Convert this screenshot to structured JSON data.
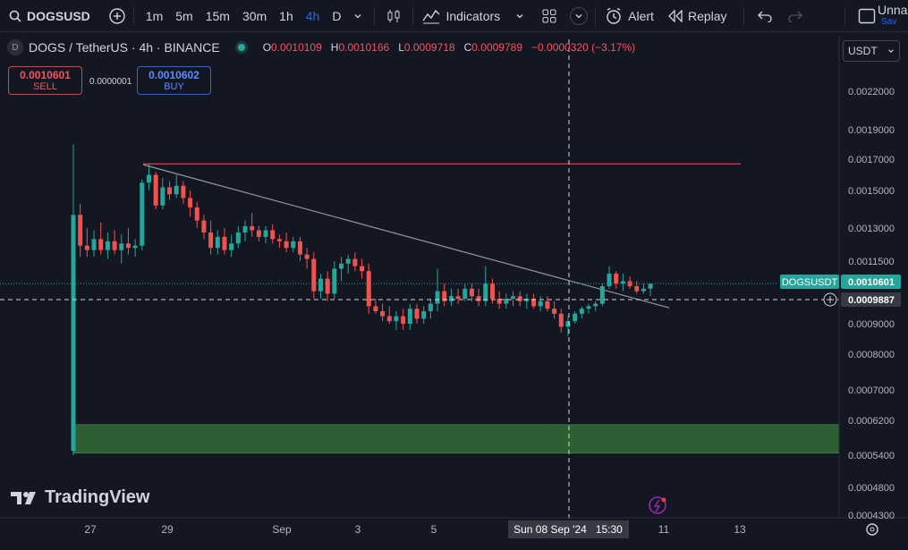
{
  "toolbar": {
    "symbol": "DOGSUSD",
    "intervals": [
      "1m",
      "5m",
      "15m",
      "30m",
      "1h",
      "4h",
      "D"
    ],
    "active_interval": "4h",
    "indicators_label": "Indicators",
    "alert_label": "Alert",
    "replay_label": "Replay",
    "layout_name": "Unna",
    "save_label": "Sav"
  },
  "chart_header": {
    "title": "DOGS / TetherUS · 4h · BINANCE",
    "o_label": "O",
    "o": "0.0010109",
    "h_label": "H",
    "h": "0.0010166",
    "l_label": "L",
    "l": "0.0009718",
    "c_label": "C",
    "c": "0.0009789",
    "change": "−0.0000320 (−3.17%)"
  },
  "trade": {
    "sell_price": "0.0010601",
    "sell_label": "SELL",
    "spread": "0.0000001",
    "buy_price": "0.0010602",
    "buy_label": "BUY"
  },
  "currency": "USDT",
  "colors": {
    "background": "#131722",
    "up": "#26a69a",
    "down": "#ef5350",
    "resistance": "#f23645",
    "zone": "#2e5e34",
    "trendline": "#9598a1"
  },
  "chart_data": {
    "type": "candlestick",
    "symbol": "DOGSUSDT",
    "y_ticks": [
      "0.0022000",
      "0.0019000",
      "0.0017000",
      "0.0015000",
      "0.0013000",
      "0.0011500",
      "0.0009000",
      "0.0008000",
      "0.0007000",
      "0.0006200",
      "0.0005400",
      "0.0004800",
      "0.0004300"
    ],
    "x_ticks": [
      "27",
      "29",
      "Sep",
      "3",
      "5",
      "11",
      "13"
    ],
    "last_price_label": "DOGSUSDT",
    "last_price": "0.0010601",
    "crosshair_price": "0.0009887",
    "crosshair_time": "Sun 08 Sep '24   15:30",
    "resistance_level": 0.00167,
    "support_zone": [
      0.000545,
      0.00061
    ],
    "trendline": [
      [
        0.001665,
        0
      ],
      [
        0.000985,
        1
      ]
    ],
    "candles": [
      {
        "o": 0.00055,
        "h": 0.0018,
        "l": 0.00054,
        "c": 0.00137
      },
      {
        "o": 0.00137,
        "h": 0.00143,
        "l": 0.00117,
        "c": 0.00122
      },
      {
        "o": 0.00122,
        "h": 0.0013,
        "l": 0.00117,
        "c": 0.0012
      },
      {
        "o": 0.0012,
        "h": 0.00129,
        "l": 0.00117,
        "c": 0.00125
      },
      {
        "o": 0.00125,
        "h": 0.00133,
        "l": 0.00118,
        "c": 0.0012
      },
      {
        "o": 0.0012,
        "h": 0.00128,
        "l": 0.00116,
        "c": 0.00124
      },
      {
        "o": 0.00124,
        "h": 0.00129,
        "l": 0.00118,
        "c": 0.0012
      },
      {
        "o": 0.0012,
        "h": 0.00127,
        "l": 0.00114,
        "c": 0.00123
      },
      {
        "o": 0.00123,
        "h": 0.0013,
        "l": 0.00118,
        "c": 0.00121
      },
      {
        "o": 0.00121,
        "h": 0.00125,
        "l": 0.00117,
        "c": 0.00122
      },
      {
        "o": 0.00122,
        "h": 0.00157,
        "l": 0.0012,
        "c": 0.00155
      },
      {
        "o": 0.00155,
        "h": 0.00167,
        "l": 0.0015,
        "c": 0.0016
      },
      {
        "o": 0.0016,
        "h": 0.00162,
        "l": 0.0014,
        "c": 0.00142
      },
      {
        "o": 0.00142,
        "h": 0.00158,
        "l": 0.0014,
        "c": 0.00152
      },
      {
        "o": 0.00152,
        "h": 0.00156,
        "l": 0.00145,
        "c": 0.00148
      },
      {
        "o": 0.00148,
        "h": 0.0016,
        "l": 0.00146,
        "c": 0.00153
      },
      {
        "o": 0.00153,
        "h": 0.00156,
        "l": 0.00143,
        "c": 0.00146
      },
      {
        "o": 0.00146,
        "h": 0.0015,
        "l": 0.00136,
        "c": 0.00141
      },
      {
        "o": 0.00141,
        "h": 0.00144,
        "l": 0.0013,
        "c": 0.00134
      },
      {
        "o": 0.00134,
        "h": 0.00137,
        "l": 0.00125,
        "c": 0.00128
      },
      {
        "o": 0.00128,
        "h": 0.00134,
        "l": 0.00118,
        "c": 0.00121
      },
      {
        "o": 0.00121,
        "h": 0.00129,
        "l": 0.00118,
        "c": 0.00126
      },
      {
        "o": 0.00126,
        "h": 0.0013,
        "l": 0.00118,
        "c": 0.0012
      },
      {
        "o": 0.0012,
        "h": 0.00127,
        "l": 0.00117,
        "c": 0.00123
      },
      {
        "o": 0.00123,
        "h": 0.00131,
        "l": 0.00121,
        "c": 0.00128
      },
      {
        "o": 0.00128,
        "h": 0.00134,
        "l": 0.00124,
        "c": 0.00131
      },
      {
        "o": 0.00131,
        "h": 0.00138,
        "l": 0.00126,
        "c": 0.00129
      },
      {
        "o": 0.00129,
        "h": 0.00131,
        "l": 0.00124,
        "c": 0.00126
      },
      {
        "o": 0.00126,
        "h": 0.00131,
        "l": 0.00123,
        "c": 0.00129
      },
      {
        "o": 0.00129,
        "h": 0.00132,
        "l": 0.00123,
        "c": 0.00125
      },
      {
        "o": 0.00125,
        "h": 0.00127,
        "l": 0.00121,
        "c": 0.00124
      },
      {
        "o": 0.00124,
        "h": 0.00128,
        "l": 0.00119,
        "c": 0.00121
      },
      {
        "o": 0.00121,
        "h": 0.00126,
        "l": 0.00119,
        "c": 0.00124
      },
      {
        "o": 0.00124,
        "h": 0.00126,
        "l": 0.00115,
        "c": 0.00118
      },
      {
        "o": 0.00118,
        "h": 0.00121,
        "l": 0.00112,
        "c": 0.00116
      },
      {
        "o": 0.00116,
        "h": 0.00119,
        "l": 0.001,
        "c": 0.00103
      },
      {
        "o": 0.00103,
        "h": 0.0011,
        "l": 0.001,
        "c": 0.00108
      },
      {
        "o": 0.00108,
        "h": 0.00111,
        "l": 0.00099,
        "c": 0.00102
      },
      {
        "o": 0.00102,
        "h": 0.00115,
        "l": 0.001,
        "c": 0.00112
      },
      {
        "o": 0.00112,
        "h": 0.00117,
        "l": 0.00107,
        "c": 0.00114
      },
      {
        "o": 0.00114,
        "h": 0.00118,
        "l": 0.0011,
        "c": 0.00116
      },
      {
        "o": 0.00116,
        "h": 0.00119,
        "l": 0.00111,
        "c": 0.00113
      },
      {
        "o": 0.00113,
        "h": 0.00116,
        "l": 0.00108,
        "c": 0.00111
      },
      {
        "o": 0.00111,
        "h": 0.00114,
        "l": 0.00094,
        "c": 0.00097
      },
      {
        "o": 0.00097,
        "h": 0.001,
        "l": 0.00094,
        "c": 0.00095
      },
      {
        "o": 0.00095,
        "h": 0.00098,
        "l": 0.00091,
        "c": 0.00093
      },
      {
        "o": 0.00093,
        "h": 0.00097,
        "l": 0.0009,
        "c": 0.00091
      },
      {
        "o": 0.00091,
        "h": 0.00095,
        "l": 0.00088,
        "c": 0.00093
      },
      {
        "o": 0.00093,
        "h": 0.00096,
        "l": 0.00088,
        "c": 0.0009
      },
      {
        "o": 0.0009,
        "h": 0.00098,
        "l": 0.00088,
        "c": 0.00096
      },
      {
        "o": 0.00096,
        "h": 0.00098,
        "l": 0.0009,
        "c": 0.00092
      },
      {
        "o": 0.00092,
        "h": 0.00097,
        "l": 0.0009,
        "c": 0.00095
      },
      {
        "o": 0.00095,
        "h": 0.001,
        "l": 0.00092,
        "c": 0.00098
      },
      {
        "o": 0.00098,
        "h": 0.00112,
        "l": 0.00095,
        "c": 0.00103
      },
      {
        "o": 0.00103,
        "h": 0.00106,
        "l": 0.00097,
        "c": 0.00099
      },
      {
        "o": 0.00099,
        "h": 0.00104,
        "l": 0.00097,
        "c": 0.00101
      },
      {
        "o": 0.00101,
        "h": 0.00104,
        "l": 0.00098,
        "c": 0.001
      },
      {
        "o": 0.001,
        "h": 0.00106,
        "l": 0.00099,
        "c": 0.00104
      },
      {
        "o": 0.00104,
        "h": 0.00106,
        "l": 0.00099,
        "c": 0.00101
      },
      {
        "o": 0.00101,
        "h": 0.00104,
        "l": 0.00097,
        "c": 0.00099
      },
      {
        "o": 0.00099,
        "h": 0.00113,
        "l": 0.00097,
        "c": 0.00106
      },
      {
        "o": 0.00106,
        "h": 0.00108,
        "l": 0.00098,
        "c": 0.001
      },
      {
        "o": 0.001,
        "h": 0.00103,
        "l": 0.00096,
        "c": 0.00098
      },
      {
        "o": 0.00098,
        "h": 0.00102,
        "l": 0.00096,
        "c": 0.001
      },
      {
        "o": 0.001,
        "h": 0.00103,
        "l": 0.00097,
        "c": 0.00101
      },
      {
        "o": 0.00101,
        "h": 0.00103,
        "l": 0.00097,
        "c": 0.00099
      },
      {
        "o": 0.00099,
        "h": 0.00102,
        "l": 0.00096,
        "c": 0.001
      },
      {
        "o": 0.001,
        "h": 0.00102,
        "l": 0.00096,
        "c": 0.00097
      },
      {
        "o": 0.00097,
        "h": 0.00101,
        "l": 0.00095,
        "c": 0.00099
      },
      {
        "o": 0.00099,
        "h": 0.00101,
        "l": 0.00095,
        "c": 0.00096
      },
      {
        "o": 0.00096,
        "h": 0.00099,
        "l": 0.00092,
        "c": 0.00094
      },
      {
        "o": 0.00094,
        "h": 0.00096,
        "l": 0.00087,
        "c": 0.00089
      },
      {
        "o": 0.00089,
        "h": 0.00093,
        "l": 0.00086,
        "c": 0.00091
      },
      {
        "o": 0.00091,
        "h": 0.00095,
        "l": 0.0009,
        "c": 0.00094
      },
      {
        "o": 0.00094,
        "h": 0.00097,
        "l": 0.00092,
        "c": 0.00096
      },
      {
        "o": 0.00096,
        "h": 0.00098,
        "l": 0.00094,
        "c": 0.00097
      },
      {
        "o": 0.00097,
        "h": 0.00099,
        "l": 0.00095,
        "c": 0.00098
      },
      {
        "o": 0.00098,
        "h": 0.00106,
        "l": 0.00097,
        "c": 0.00105
      },
      {
        "o": 0.00105,
        "h": 0.00113,
        "l": 0.00104,
        "c": 0.0011
      },
      {
        "o": 0.0011,
        "h": 0.00111,
        "l": 0.00104,
        "c": 0.00106
      },
      {
        "o": 0.00106,
        "h": 0.0011,
        "l": 0.00103,
        "c": 0.00107
      },
      {
        "o": 0.00107,
        "h": 0.00109,
        "l": 0.00104,
        "c": 0.00105
      },
      {
        "o": 0.00105,
        "h": 0.00107,
        "l": 0.00102,
        "c": 0.00103
      },
      {
        "o": 0.00103,
        "h": 0.00106,
        "l": 0.00102,
        "c": 0.00104
      },
      {
        "o": 0.00104,
        "h": 0.00106,
        "l": 0.00101,
        "c": 0.00106
      }
    ]
  }
}
